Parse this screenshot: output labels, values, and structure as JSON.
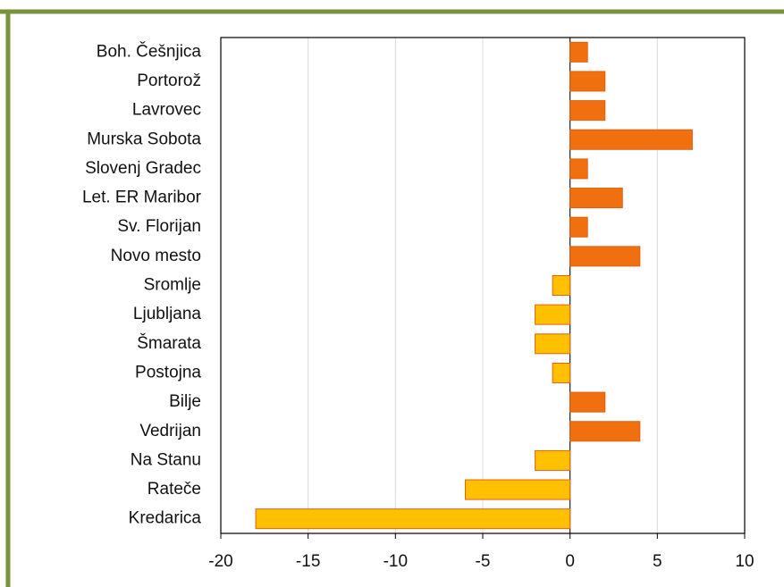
{
  "chart_data": {
    "type": "bar",
    "orientation": "horizontal",
    "categories": [
      "Boh. Češnjica",
      "Portorož",
      "Lavrovec",
      "Murska Sobota",
      "Slovenj Gradec",
      "Let. ER Maribor",
      "Sv. Florijan",
      "Novo mesto",
      "Sromlje",
      "Ljubljana",
      "Šmarata",
      "Postojna",
      "Bilje",
      "Vedrijan",
      "Na Stanu",
      "Rateče",
      "Kredarica"
    ],
    "values": [
      1,
      2,
      2,
      7,
      1,
      3,
      1,
      4,
      -1,
      -2,
      -2,
      -1,
      2,
      4,
      -2,
      -6,
      -18
    ],
    "color_positive": "#f07010",
    "color_negative": "#ffc000",
    "xlim": [
      -20,
      10
    ],
    "xticks": [
      -20,
      -15,
      -10,
      -5,
      0,
      5,
      10
    ],
    "grid": true
  }
}
